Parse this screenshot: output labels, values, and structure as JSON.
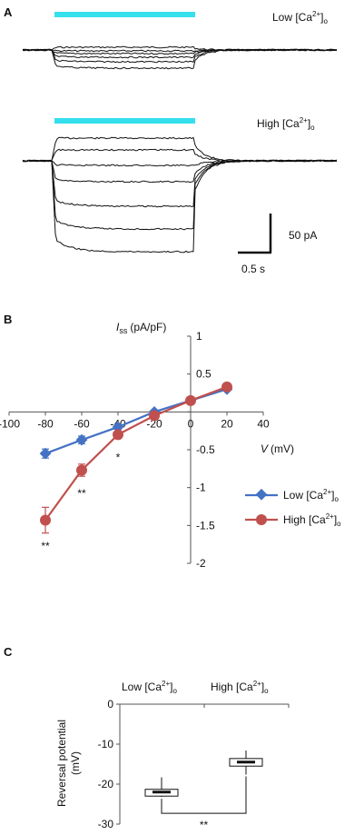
{
  "panels": {
    "a": {
      "letter": "A",
      "trace_low": {
        "label_base": "Low [Ca",
        "label_sup": "2+",
        "label_end": "]",
        "label_sub": "o"
      },
      "trace_high": {
        "label_base": "High [Ca",
        "label_sup": "2+",
        "label_end": "]",
        "label_sub": "o"
      },
      "stim_color": "#33e0ec",
      "trace_color": "#111111",
      "scale_bar": {
        "current": "50 pA",
        "time": "0.5 s"
      }
    },
    "b": {
      "letter": "B"
    },
    "c": {
      "letter": "C"
    }
  },
  "chart_data": [
    {
      "type": "line",
      "panel": "B",
      "ylabel_main": "I",
      "ylabel_sub": "ss",
      "ylabel_unit": "(pA/pF)",
      "xlabel_main": "V",
      "xlabel_unit": "(mV)",
      "xlim": [
        -100,
        40
      ],
      "ylim": [
        -2,
        1
      ],
      "xticks": [
        -100,
        -80,
        -60,
        -40,
        -20,
        0,
        20,
        40
      ],
      "xtick_labels": [
        "-100",
        "-80",
        "-60",
        "-40",
        "-20",
        "0",
        "20",
        "40"
      ],
      "yticks": [
        1,
        0.5,
        0,
        -0.5,
        -1,
        -1.5,
        -2
      ],
      "ytick_labels": [
        "1",
        "0.5",
        "0",
        "-0.5",
        "-1",
        "-1.5",
        "-2"
      ],
      "legend_position": "right",
      "series": [
        {
          "name_base": "Low [Ca",
          "name_sup": "2+",
          "name_end": "]",
          "name_sub": "o",
          "color": "#4472c4",
          "marker": "diamond",
          "x": [
            -80,
            -60,
            -40,
            -20,
            0,
            20
          ],
          "y": [
            -0.55,
            -0.37,
            -0.2,
            0.0,
            0.15,
            0.3
          ],
          "err": [
            0.06,
            0.05,
            0.03,
            0.02,
            0.02,
            0.02
          ]
        },
        {
          "name_base": "High [Ca",
          "name_sup": "2+",
          "name_end": "]",
          "name_sub": "o",
          "color": "#c0504d",
          "marker": "circle",
          "x": [
            -80,
            -60,
            -40,
            -20,
            0,
            20
          ],
          "y": [
            -1.43,
            -0.77,
            -0.3,
            -0.05,
            0.15,
            0.33
          ],
          "err": [
            0.17,
            0.08,
            0.03,
            0.02,
            0.02,
            0.02
          ]
        }
      ],
      "annotations": [
        {
          "text": "**",
          "x": -80,
          "y": -1.75
        },
        {
          "text": "**",
          "x": -60,
          "y": -1.05
        },
        {
          "text": "*",
          "x": -40,
          "y": -0.58
        }
      ]
    },
    {
      "type": "box",
      "panel": "C",
      "ylabel_line1": "Reversal potential",
      "ylabel_line2": "(mV)",
      "ylim": [
        -30,
        0
      ],
      "yticks": [
        0,
        -10,
        -20,
        -30
      ],
      "ytick_labels": [
        "0",
        "-10",
        "-20",
        "-30"
      ],
      "categories": [
        {
          "base": "Low [Ca",
          "sup": "2+",
          "end": "]",
          "sub": "o"
        },
        {
          "base": "High [Ca",
          "sup": "2+",
          "end": "]",
          "sub": "o"
        }
      ],
      "boxes": [
        {
          "min": -23.2,
          "q1": -23.0,
          "median": -22.0,
          "q3": -21.3,
          "max": -18.3
        },
        {
          "min": -17.6,
          "q1": -15.5,
          "median": -14.5,
          "q3": -13.6,
          "max": -11.6
        }
      ],
      "significance": "**"
    }
  ]
}
